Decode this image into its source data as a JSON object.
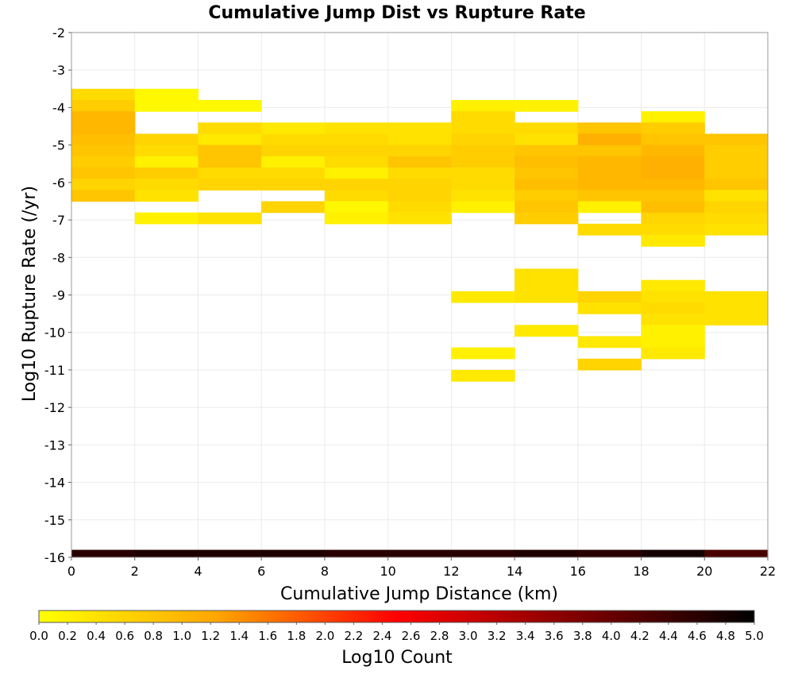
{
  "chart_data": {
    "type": "heatmap",
    "title": "Cumulative Jump Dist vs Rupture Rate",
    "xlabel": "Cumulative Jump Distance (km)",
    "ylabel": "Log10 Rupture Rate (/yr)",
    "xlim": [
      0,
      22
    ],
    "ylim": [
      -16,
      -2
    ],
    "x_ticks": [
      "0",
      "2",
      "4",
      "6",
      "8",
      "10",
      "12",
      "14",
      "16",
      "18",
      "20",
      "22"
    ],
    "y_ticks": [
      "-2",
      "-3",
      "-4",
      "-5",
      "-6",
      "-7",
      "-8",
      "-9",
      "-10",
      "-11",
      "-12",
      "-13",
      "-14",
      "-15",
      "-16"
    ],
    "grid": true,
    "colorbar": {
      "label": "Log10 Count",
      "min": 0.0,
      "max": 5.0,
      "ticks": [
        "0.0",
        "0.2",
        "0.4",
        "0.6",
        "0.8",
        "1.0",
        "1.2",
        "1.4",
        "1.6",
        "1.8",
        "2.0",
        "2.2",
        "2.4",
        "2.6",
        "2.8",
        "3.0",
        "3.2",
        "3.4",
        "3.6",
        "3.8",
        "4.0",
        "4.2",
        "4.4",
        "4.6",
        "4.8",
        "5.0"
      ],
      "colors": [
        "#ffff00",
        "#ffa500",
        "#ff0000",
        "#800000",
        "#000000"
      ]
    },
    "cell_width": 2,
    "cell_height": 0.3,
    "cells": [
      {
        "x": 0,
        "y": -3.8,
        "v": 0.5
      },
      {
        "x": 0,
        "y": -4.1,
        "v": 0.7
      },
      {
        "x": 0,
        "y": -4.4,
        "v": 1.0
      },
      {
        "x": 0,
        "y": -4.7,
        "v": 1.0
      },
      {
        "x": 0,
        "y": -5.0,
        "v": 0.9
      },
      {
        "x": 0,
        "y": -5.3,
        "v": 0.8
      },
      {
        "x": 0,
        "y": -5.6,
        "v": 0.7
      },
      {
        "x": 0,
        "y": -5.9,
        "v": 0.8
      },
      {
        "x": 0,
        "y": -6.2,
        "v": 0.6
      },
      {
        "x": 0,
        "y": -6.5,
        "v": 0.8
      },
      {
        "x": 2,
        "y": -3.8,
        "v": 0.1
      },
      {
        "x": 2,
        "y": -4.1,
        "v": 0.1
      },
      {
        "x": 2,
        "y": -5.0,
        "v": 0.6
      },
      {
        "x": 2,
        "y": -5.3,
        "v": 0.5
      },
      {
        "x": 2,
        "y": -5.6,
        "v": 0.2
      },
      {
        "x": 2,
        "y": -5.9,
        "v": 0.7
      },
      {
        "x": 2,
        "y": -6.2,
        "v": 0.5
      },
      {
        "x": 2,
        "y": -6.5,
        "v": 0.4
      },
      {
        "x": 2,
        "y": -7.1,
        "v": 0.2
      },
      {
        "x": 4,
        "y": -4.1,
        "v": 0.1
      },
      {
        "x": 4,
        "y": -4.7,
        "v": 0.5
      },
      {
        "x": 4,
        "y": -5.0,
        "v": 0.3
      },
      {
        "x": 4,
        "y": -5.3,
        "v": 0.8
      },
      {
        "x": 4,
        "y": -5.6,
        "v": 0.8
      },
      {
        "x": 4,
        "y": -5.9,
        "v": 0.5
      },
      {
        "x": 4,
        "y": -6.2,
        "v": 0.6
      },
      {
        "x": 4,
        "y": -7.1,
        "v": 0.4
      },
      {
        "x": 6,
        "y": -4.7,
        "v": 0.3
      },
      {
        "x": 6,
        "y": -5.0,
        "v": 0.5
      },
      {
        "x": 6,
        "y": -5.3,
        "v": 0.6
      },
      {
        "x": 6,
        "y": -5.6,
        "v": 0.2
      },
      {
        "x": 6,
        "y": -5.9,
        "v": 0.5
      },
      {
        "x": 6,
        "y": -6.2,
        "v": 0.6
      },
      {
        "x": 6,
        "y": -6.8,
        "v": 0.6
      },
      {
        "x": 8,
        "y": -4.7,
        "v": 0.4
      },
      {
        "x": 8,
        "y": -5.0,
        "v": 0.5
      },
      {
        "x": 8,
        "y": -5.3,
        "v": 0.6
      },
      {
        "x": 8,
        "y": -5.6,
        "v": 0.5
      },
      {
        "x": 8,
        "y": -5.9,
        "v": 0.2
      },
      {
        "x": 8,
        "y": -6.2,
        "v": 0.6
      },
      {
        "x": 8,
        "y": -6.5,
        "v": 0.5
      },
      {
        "x": 8,
        "y": -6.8,
        "v": 0.1
      },
      {
        "x": 8,
        "y": -7.1,
        "v": 0.2
      },
      {
        "x": 10,
        "y": -4.7,
        "v": 0.4
      },
      {
        "x": 10,
        "y": -5.0,
        "v": 0.4
      },
      {
        "x": 10,
        "y": -5.3,
        "v": 0.6
      },
      {
        "x": 10,
        "y": -5.6,
        "v": 0.8
      },
      {
        "x": 10,
        "y": -5.9,
        "v": 0.5
      },
      {
        "x": 10,
        "y": -6.2,
        "v": 0.6
      },
      {
        "x": 10,
        "y": -6.5,
        "v": 0.6
      },
      {
        "x": 10,
        "y": -6.8,
        "v": 0.5
      },
      {
        "x": 10,
        "y": -7.1,
        "v": 0.4
      },
      {
        "x": 12,
        "y": -4.1,
        "v": 0.2
      },
      {
        "x": 12,
        "y": -4.4,
        "v": 0.5
      },
      {
        "x": 12,
        "y": -4.7,
        "v": 0.5
      },
      {
        "x": 12,
        "y": -5.0,
        "v": 0.6
      },
      {
        "x": 12,
        "y": -5.3,
        "v": 0.7
      },
      {
        "x": 12,
        "y": -5.6,
        "v": 0.7
      },
      {
        "x": 12,
        "y": -5.9,
        "v": 0.5
      },
      {
        "x": 12,
        "y": -6.2,
        "v": 0.5
      },
      {
        "x": 12,
        "y": -6.5,
        "v": 0.4
      },
      {
        "x": 12,
        "y": -6.8,
        "v": 0.2
      },
      {
        "x": 12,
        "y": -9.2,
        "v": 0.3
      },
      {
        "x": 12,
        "y": -10.7,
        "v": 0.2
      },
      {
        "x": 12,
        "y": -11.3,
        "v": 0.3
      },
      {
        "x": 14,
        "y": -4.1,
        "v": 0.2
      },
      {
        "x": 14,
        "y": -4.7,
        "v": 0.5
      },
      {
        "x": 14,
        "y": -5.0,
        "v": 0.4
      },
      {
        "x": 14,
        "y": -5.3,
        "v": 0.8
      },
      {
        "x": 14,
        "y": -5.6,
        "v": 0.9
      },
      {
        "x": 14,
        "y": -5.9,
        "v": 0.8
      },
      {
        "x": 14,
        "y": -6.2,
        "v": 0.9
      },
      {
        "x": 14,
        "y": -6.5,
        "v": 0.7
      },
      {
        "x": 14,
        "y": -6.8,
        "v": 0.8
      },
      {
        "x": 14,
        "y": -7.1,
        "v": 0.7
      },
      {
        "x": 14,
        "y": -8.6,
        "v": 0.4
      },
      {
        "x": 14,
        "y": -8.9,
        "v": 0.4
      },
      {
        "x": 14,
        "y": -9.2,
        "v": 0.4
      },
      {
        "x": 14,
        "y": -10.1,
        "v": 0.3
      },
      {
        "x": 16,
        "y": -4.7,
        "v": 0.8
      },
      {
        "x": 16,
        "y": -5.0,
        "v": 1.1
      },
      {
        "x": 16,
        "y": -5.3,
        "v": 0.8
      },
      {
        "x": 16,
        "y": -5.6,
        "v": 1.0
      },
      {
        "x": 16,
        "y": -5.9,
        "v": 1.0
      },
      {
        "x": 16,
        "y": -6.2,
        "v": 1.0
      },
      {
        "x": 16,
        "y": -6.5,
        "v": 0.8
      },
      {
        "x": 16,
        "y": -6.8,
        "v": 0.2
      },
      {
        "x": 16,
        "y": -7.4,
        "v": 0.5
      },
      {
        "x": 16,
        "y": -9.2,
        "v": 0.6
      },
      {
        "x": 16,
        "y": -9.5,
        "v": 0.4
      },
      {
        "x": 16,
        "y": -10.4,
        "v": 0.3
      },
      {
        "x": 16,
        "y": -11.0,
        "v": 0.6
      },
      {
        "x": 18,
        "y": -4.4,
        "v": 0.2
      },
      {
        "x": 18,
        "y": -4.7,
        "v": 0.7
      },
      {
        "x": 18,
        "y": -5.0,
        "v": 0.8
      },
      {
        "x": 18,
        "y": -5.3,
        "v": 1.0
      },
      {
        "x": 18,
        "y": -5.6,
        "v": 1.1
      },
      {
        "x": 18,
        "y": -5.9,
        "v": 1.1
      },
      {
        "x": 18,
        "y": -6.2,
        "v": 1.0
      },
      {
        "x": 18,
        "y": -6.5,
        "v": 0.8
      },
      {
        "x": 18,
        "y": -6.8,
        "v": 0.9
      },
      {
        "x": 18,
        "y": -7.1,
        "v": 0.6
      },
      {
        "x": 18,
        "y": -7.4,
        "v": 0.5
      },
      {
        "x": 18,
        "y": -7.7,
        "v": 0.3
      },
      {
        "x": 18,
        "y": -8.9,
        "v": 0.3
      },
      {
        "x": 18,
        "y": -9.2,
        "v": 0.4
      },
      {
        "x": 18,
        "y": -9.5,
        "v": 0.5
      },
      {
        "x": 18,
        "y": -9.8,
        "v": 0.4
      },
      {
        "x": 18,
        "y": -10.1,
        "v": 0.2
      },
      {
        "x": 18,
        "y": -10.4,
        "v": 0.2
      },
      {
        "x": 18,
        "y": -10.7,
        "v": 0.3
      },
      {
        "x": 20,
        "y": -5.0,
        "v": 0.8
      },
      {
        "x": 20,
        "y": -5.3,
        "v": 0.7
      },
      {
        "x": 20,
        "y": -5.6,
        "v": 0.7
      },
      {
        "x": 20,
        "y": -5.9,
        "v": 0.7
      },
      {
        "x": 20,
        "y": -6.2,
        "v": 0.8
      },
      {
        "x": 20,
        "y": -6.5,
        "v": 0.4
      },
      {
        "x": 20,
        "y": -6.8,
        "v": 0.6
      },
      {
        "x": 20,
        "y": -7.1,
        "v": 0.5
      },
      {
        "x": 20,
        "y": -7.4,
        "v": 0.4
      },
      {
        "x": 20,
        "y": -9.2,
        "v": 0.4
      },
      {
        "x": 20,
        "y": -9.5,
        "v": 0.4
      },
      {
        "x": 20,
        "y": -9.8,
        "v": 0.4
      }
    ],
    "bottom_row": {
      "y": -16,
      "height": 0.2,
      "cells": [
        {
          "x": 0,
          "v": 4.6
        },
        {
          "x": 2,
          "v": 4.7
        },
        {
          "x": 4,
          "v": 4.7
        },
        {
          "x": 6,
          "v": 4.7
        },
        {
          "x": 8,
          "v": 4.6
        },
        {
          "x": 10,
          "v": 4.6
        },
        {
          "x": 12,
          "v": 4.6
        },
        {
          "x": 14,
          "v": 4.7
        },
        {
          "x": 16,
          "v": 4.6
        },
        {
          "x": 18,
          "v": 4.8
        },
        {
          "x": 20,
          "v": 4.3
        }
      ]
    }
  }
}
